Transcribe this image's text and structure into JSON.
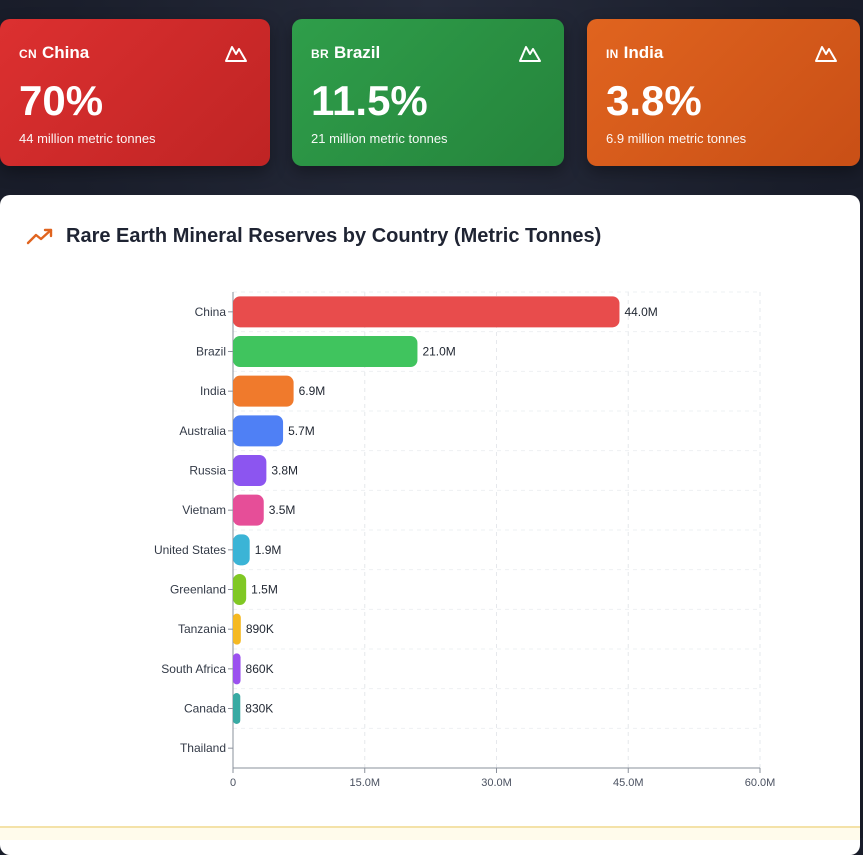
{
  "cards": [
    {
      "code": "CN",
      "country": "China",
      "pct": "70%",
      "sub": "44 million metric tonnes",
      "icon": "mountain-icon",
      "color": "#dc3030"
    },
    {
      "code": "BR",
      "country": "Brazil",
      "pct": "11.5%",
      "sub": "21 million metric tonnes",
      "icon": "mountain-icon",
      "color": "#2f9e4a"
    },
    {
      "code": "IN",
      "country": "India",
      "pct": "3.8%",
      "sub": "6.9 million metric tonnes",
      "icon": "mountain-icon",
      "color": "#e0641f"
    }
  ],
  "panel": {
    "title": "Rare Earth Mineral Reserves by Country (Metric Tonnes)",
    "title_icon": "trending-up-icon"
  },
  "chart_data": {
    "type": "bar",
    "orientation": "horizontal",
    "title": "Rare Earth Mineral Reserves by Country (Metric Tonnes)",
    "categories": [
      "China",
      "Brazil",
      "India",
      "Australia",
      "Russia",
      "Vietnam",
      "United States",
      "Greenland",
      "Tanzania",
      "South Africa",
      "Canada",
      "Thailand"
    ],
    "values": [
      44000000,
      21000000,
      6900000,
      5700000,
      3800000,
      3500000,
      1900000,
      1500000,
      890000,
      860000,
      830000,
      0
    ],
    "value_labels": [
      "44.0M",
      "21.0M",
      "6.9M",
      "5.7M",
      "3.8M",
      "3.5M",
      "1.9M",
      "1.5M",
      "890K",
      "860K",
      "830K",
      ""
    ],
    "colors": [
      "#e84c4c",
      "#40c45e",
      "#f07a2c",
      "#4f80f5",
      "#8c55f0",
      "#e64e98",
      "#3bb4d6",
      "#80c824",
      "#f5b922",
      "#9b51ef",
      "#38aaa3",
      "#9aa0ab"
    ],
    "xlim": [
      0,
      60000000
    ],
    "x_ticks": [
      0,
      15000000,
      30000000,
      45000000,
      60000000
    ],
    "x_tick_labels": [
      "0",
      "15.0M",
      "30.0M",
      "45.0M",
      "60.0M"
    ],
    "grid": true,
    "xlabel": "",
    "ylabel": ""
  }
}
